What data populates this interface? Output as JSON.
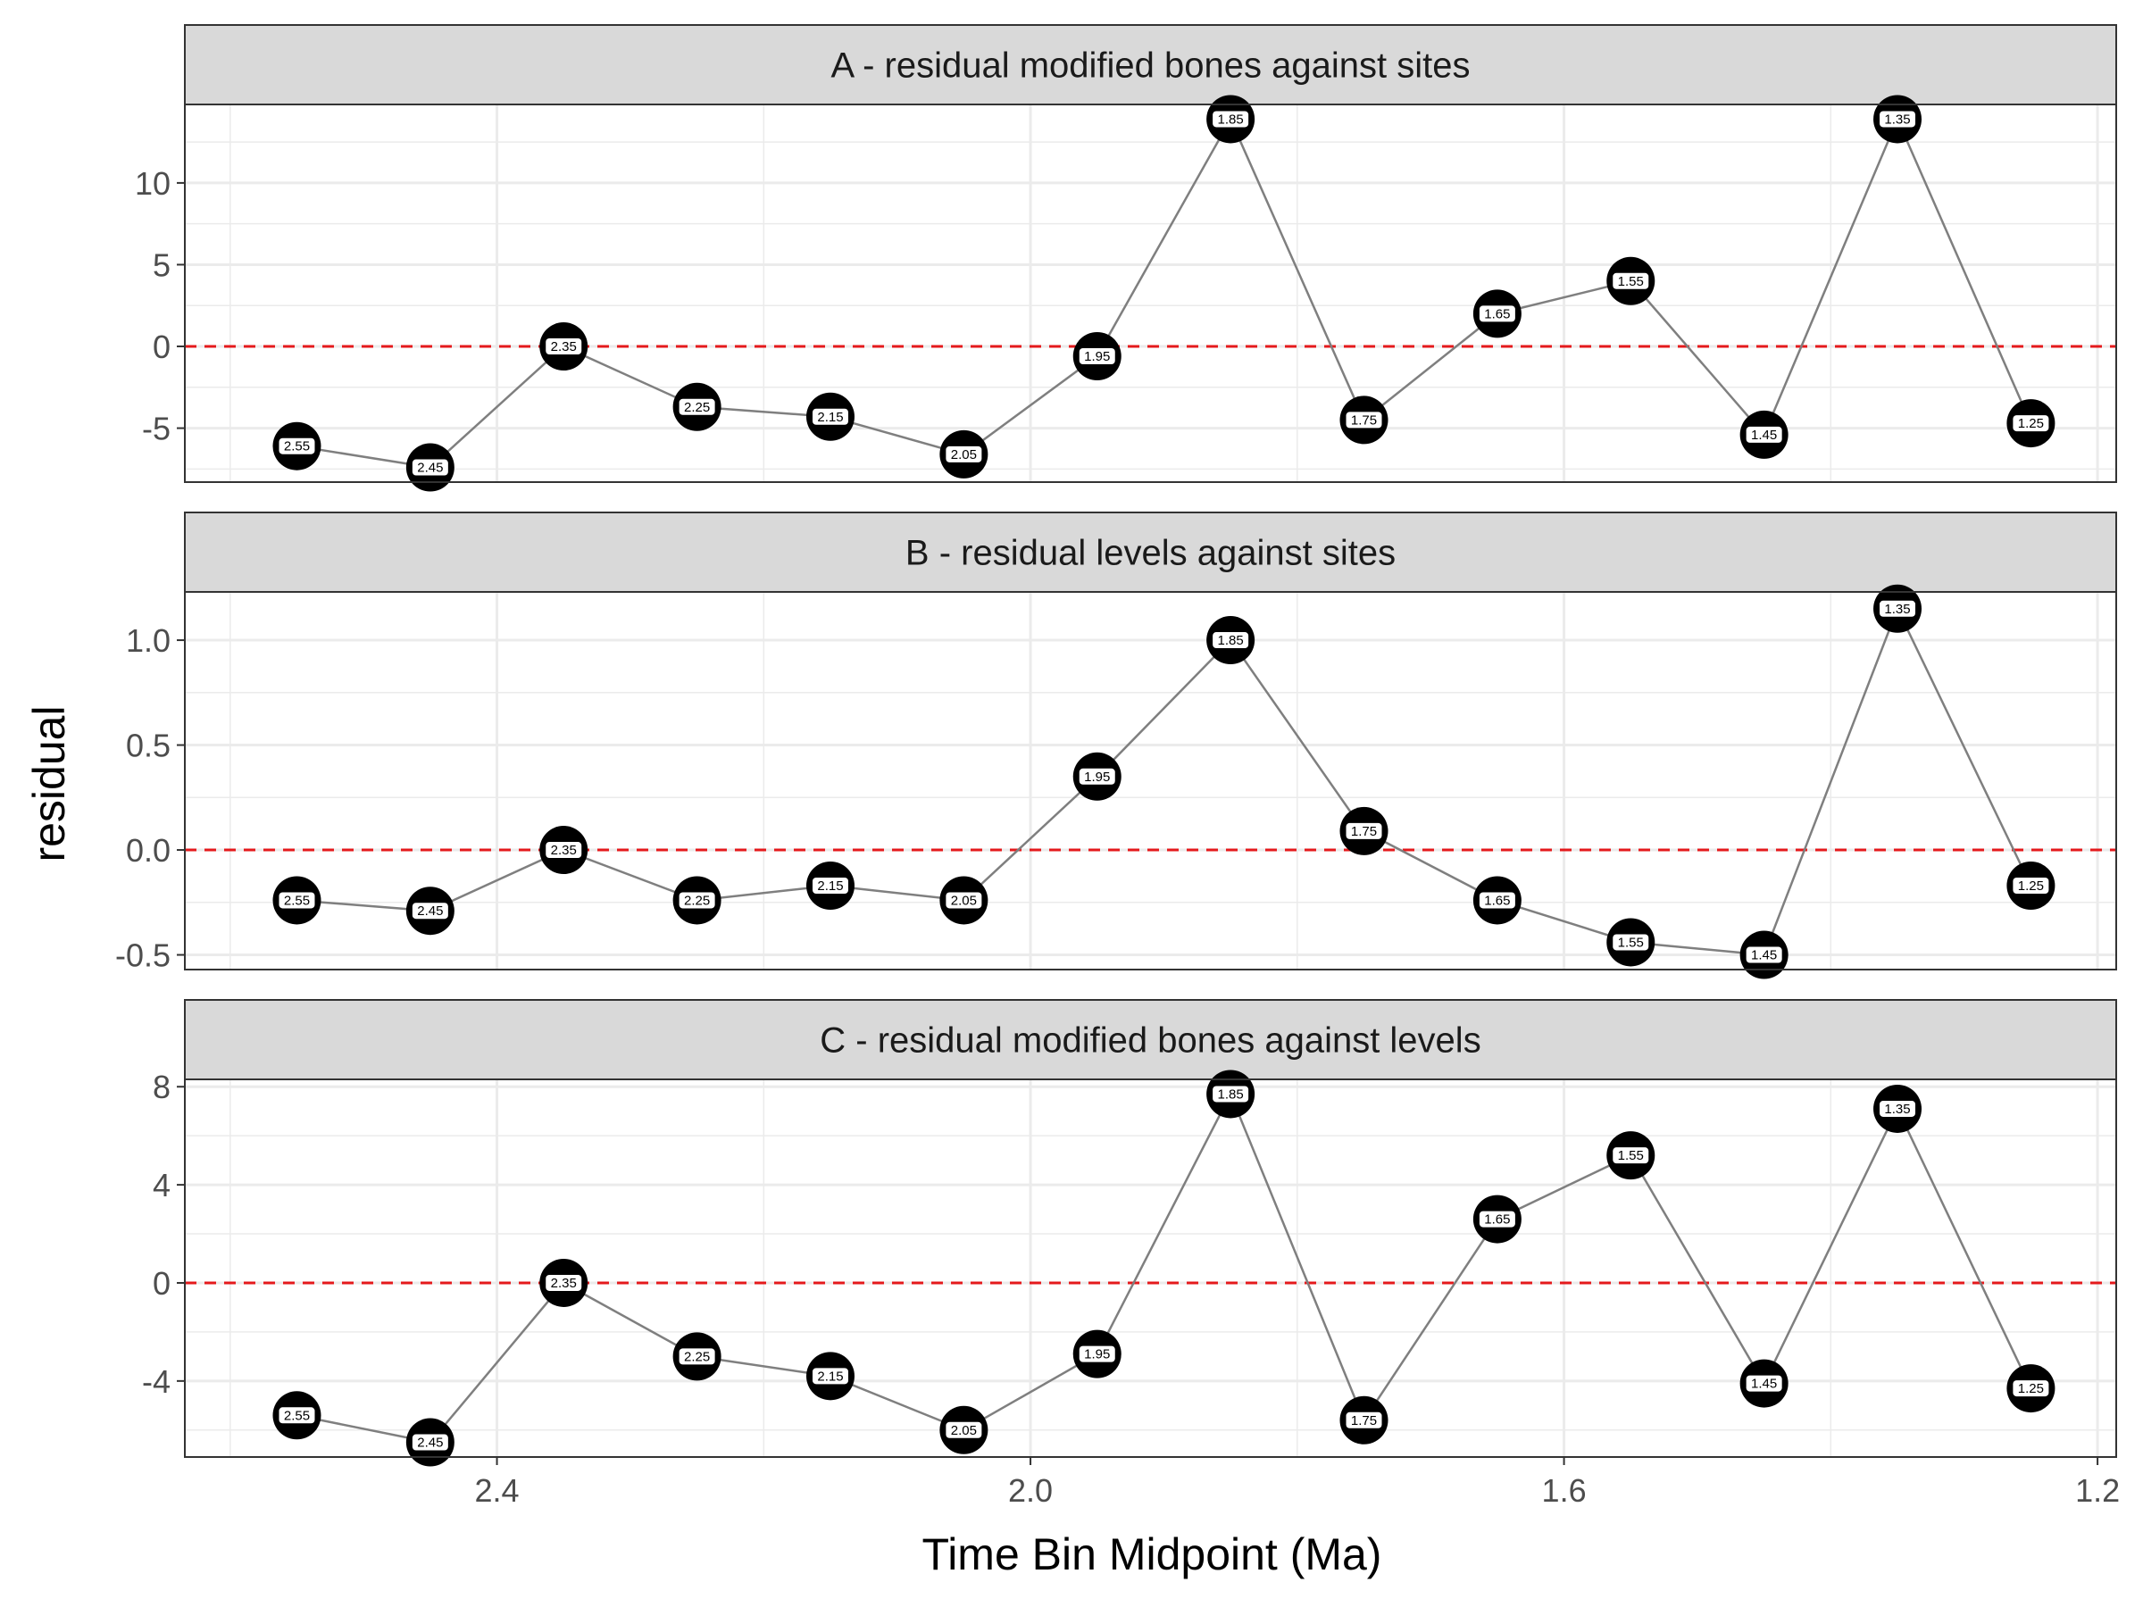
{
  "chart_data": {
    "type": "line",
    "xlabel": "Time Bin Midpoint (Ma)",
    "ylabel": "residual",
    "x_reversed": true,
    "xlim": [
      2.634,
      1.186
    ],
    "xticks": [
      2.4,
      2.0,
      1.6,
      1.2
    ],
    "xtick_labels": [
      "2.4",
      "2.0",
      "1.6",
      "1.2"
    ],
    "x": [
      2.55,
      2.45,
      2.35,
      2.25,
      2.15,
      2.05,
      1.95,
      1.85,
      1.75,
      1.65,
      1.55,
      1.45,
      1.35,
      1.25
    ],
    "point_labels": [
      "2.55",
      "2.45",
      "2.35",
      "2.25",
      "2.15",
      "2.05",
      "1.95",
      "1.85",
      "1.75",
      "1.65",
      "1.55",
      "1.45",
      "1.35",
      "1.25"
    ],
    "reference_line": {
      "y": 0,
      "style": "dashed",
      "color": "#e41a1c"
    },
    "grid": true,
    "colors": {
      "line": "#7f7f7f",
      "point": "#000000",
      "label_bg": "#ffffff",
      "strip_bg": "#d9d9d9",
      "grid": "#ebebeb"
    },
    "panels": [
      {
        "title": "A - residual modified bones against sites",
        "ylim": [
          -8.3,
          14.8
        ],
        "yticks": [
          -5,
          0,
          5,
          10
        ],
        "ytick_labels": [
          "-5",
          "0",
          "5",
          "10"
        ],
        "values": [
          -6.1,
          -7.4,
          0.0,
          -3.7,
          -4.3,
          -6.6,
          -0.6,
          13.9,
          -4.5,
          2.0,
          4.0,
          -5.4,
          13.9,
          -4.7
        ]
      },
      {
        "title": "B - residual levels against sites",
        "ylim": [
          -0.57,
          1.23
        ],
        "yticks": [
          -0.5,
          0.0,
          0.5,
          1.0
        ],
        "ytick_labels": [
          "-0.5",
          "0.0",
          "0.5",
          "1.0"
        ],
        "values": [
          -0.24,
          -0.29,
          0.0,
          -0.24,
          -0.17,
          -0.24,
          0.35,
          1.0,
          0.09,
          -0.24,
          -0.44,
          -0.5,
          1.15,
          -0.17
        ]
      },
      {
        "title": "C - residual modified bones against levels",
        "ylim": [
          -7.1,
          8.3
        ],
        "yticks": [
          -4,
          0,
          4,
          8
        ],
        "ytick_labels": [
          "-4",
          "0",
          "4",
          "8"
        ],
        "values": [
          -5.4,
          -6.5,
          0.0,
          -3.0,
          -3.8,
          -6.0,
          -2.9,
          7.7,
          -5.6,
          2.6,
          5.2,
          -4.1,
          7.1,
          -4.3
        ]
      }
    ]
  }
}
